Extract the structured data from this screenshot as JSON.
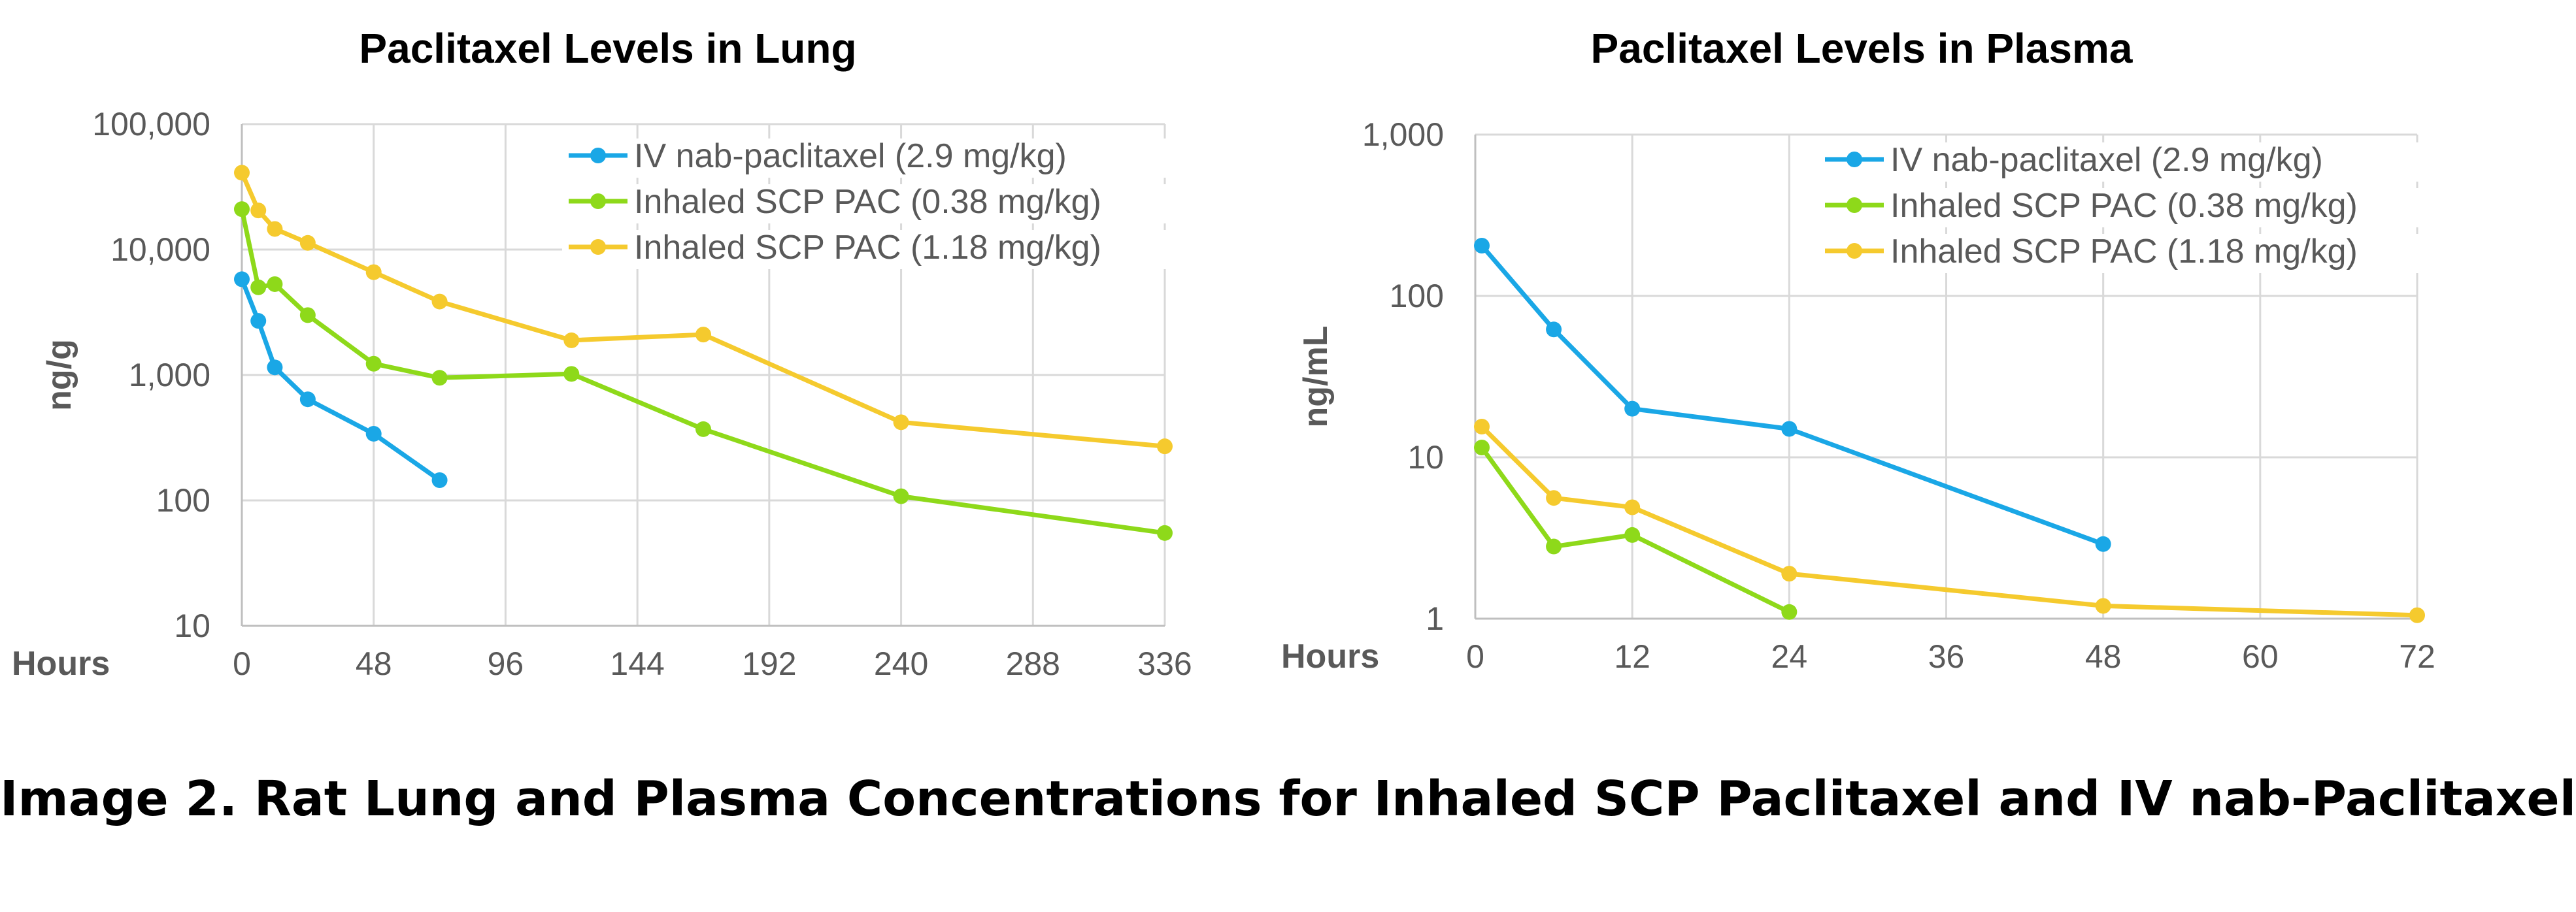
{
  "caption": "Image 2.  Rat Lung and Plasma Concentrations for Inhaled SCP Paclitaxel and IV nab-Paclitaxel",
  "colors": {
    "iv": "#1aa7e6",
    "low": "#8ed91a",
    "high": "#f5ca2e"
  },
  "chart_data": [
    {
      "type": "line",
      "title": "Paclitaxel Levels in Lung",
      "xlabel": "Hours",
      "ylabel": "ng/g",
      "yscale": "log",
      "xlim": [
        0,
        336
      ],
      "ylim": [
        10,
        100000
      ],
      "xticks": [
        0,
        48,
        96,
        144,
        192,
        240,
        288,
        336
      ],
      "yticks": [
        10,
        100,
        1000,
        10000,
        100000
      ],
      "ytick_labels": [
        "10",
        "100",
        "1,000",
        "10,000",
        "100,000"
      ],
      "grid": true,
      "legend_position": "top-right",
      "series": [
        {
          "name": "IV nab-paclitaxel (2.9 mg/kg)",
          "color": "#1aa7e6",
          "x": [
            0,
            6,
            12,
            24,
            48,
            72
          ],
          "y": [
            5800,
            2700,
            1150,
            640,
            340,
            145
          ]
        },
        {
          "name": "Inhaled SCP PAC (0.38 mg/kg)",
          "color": "#8ed91a",
          "x": [
            0,
            6,
            12,
            24,
            48,
            72,
            120,
            168,
            240,
            336
          ],
          "y": [
            21000,
            5000,
            5300,
            3000,
            1230,
            950,
            1020,
            370,
            108,
            55
          ]
        },
        {
          "name": "Inhaled SCP PAC (1.18 mg/kg)",
          "color": "#f5ca2e",
          "x": [
            0,
            6,
            12,
            24,
            48,
            72,
            120,
            168,
            240,
            336
          ],
          "y": [
            41000,
            20500,
            14600,
            11300,
            6600,
            3850,
            1890,
            2100,
            420,
            270
          ]
        }
      ]
    },
    {
      "type": "line",
      "title": "Paclitaxel Levels in Plasma",
      "xlabel": "Hours",
      "ylabel": "ng/mL",
      "yscale": "log",
      "xlim": [
        0,
        72
      ],
      "ylim": [
        1,
        1000
      ],
      "xticks": [
        0,
        12,
        24,
        36,
        48,
        60,
        72
      ],
      "yticks": [
        1,
        10,
        100,
        1000
      ],
      "ytick_labels": [
        "1",
        "10",
        "100",
        "1,000"
      ],
      "grid": true,
      "legend_position": "top-right",
      "series": [
        {
          "name": "IV nab-paclitaxel (2.9 mg/kg)",
          "color": "#1aa7e6",
          "x": [
            0.5,
            6,
            12,
            24,
            48
          ],
          "y": [
            205,
            62,
            20,
            15,
            2.9
          ]
        },
        {
          "name": "Inhaled SCP PAC (0.38 mg/kg)",
          "color": "#8ed91a",
          "x": [
            0.5,
            6,
            12,
            24
          ],
          "y": [
            11.5,
            2.8,
            3.3,
            1.1
          ]
        },
        {
          "name": "Inhaled SCP PAC (1.18 mg/kg)",
          "color": "#f5ca2e",
          "x": [
            0.5,
            6,
            12,
            24,
            48,
            72
          ],
          "y": [
            15.5,
            5.6,
            4.9,
            1.9,
            1.2,
            1.05
          ]
        }
      ]
    }
  ]
}
